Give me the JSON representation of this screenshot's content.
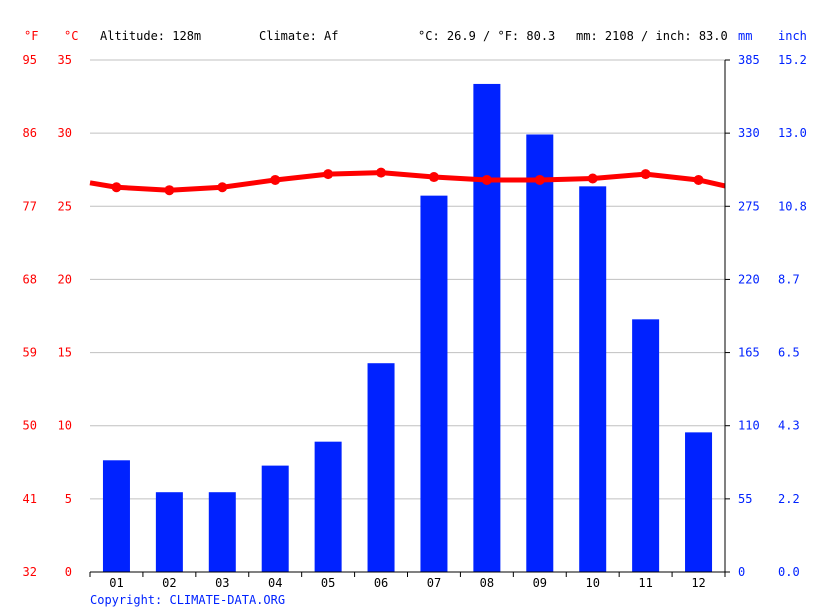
{
  "header": {
    "unit_f": "°F",
    "unit_c": "°C",
    "altitude": "Altitude: 128m",
    "climate": "Climate: Af",
    "temp_avg": "°C: 26.9 / °F: 80.3",
    "precip_total": "mm: 2108 / inch: 83.0",
    "unit_mm": "mm",
    "unit_inch": "inch"
  },
  "footer": {
    "copyright": "Copyright: CLIMATE-DATA.ORG"
  },
  "colors": {
    "temp": "#ff0000",
    "precip": "#0022ff",
    "grid": "#c0c0c0",
    "text": "#000000"
  },
  "axes": {
    "f_ticks": [
      "95",
      "86",
      "77",
      "68",
      "59",
      "50",
      "41",
      "32"
    ],
    "c_ticks": [
      "35",
      "30",
      "25",
      "20",
      "15",
      "10",
      "5",
      "0"
    ],
    "mm_ticks": [
      "385",
      "330",
      "275",
      "220",
      "165",
      "110",
      "55",
      "0"
    ],
    "inch_ticks": [
      "15.2",
      "13.0",
      "10.8",
      "8.7",
      "6.5",
      "4.3",
      "2.2",
      "0.0"
    ]
  },
  "chart_data": {
    "type": "bar",
    "categories": [
      "01",
      "02",
      "03",
      "04",
      "05",
      "06",
      "07",
      "08",
      "09",
      "10",
      "11",
      "12"
    ],
    "series": [
      {
        "type": "bar",
        "unit": "mm",
        "values": [
          84,
          60,
          60,
          80,
          98,
          157,
          283,
          367,
          329,
          290,
          190,
          105
        ]
      },
      {
        "type": "line",
        "unit": "°C",
        "values": [
          26.3,
          26.1,
          26.3,
          26.8,
          27.2,
          27.3,
          27.0,
          26.8,
          26.8,
          26.9,
          27.2,
          26.8
        ]
      }
    ],
    "ylim_c": [
      0,
      35
    ],
    "ylim_mm": [
      0,
      385
    ],
    "grid": true
  }
}
